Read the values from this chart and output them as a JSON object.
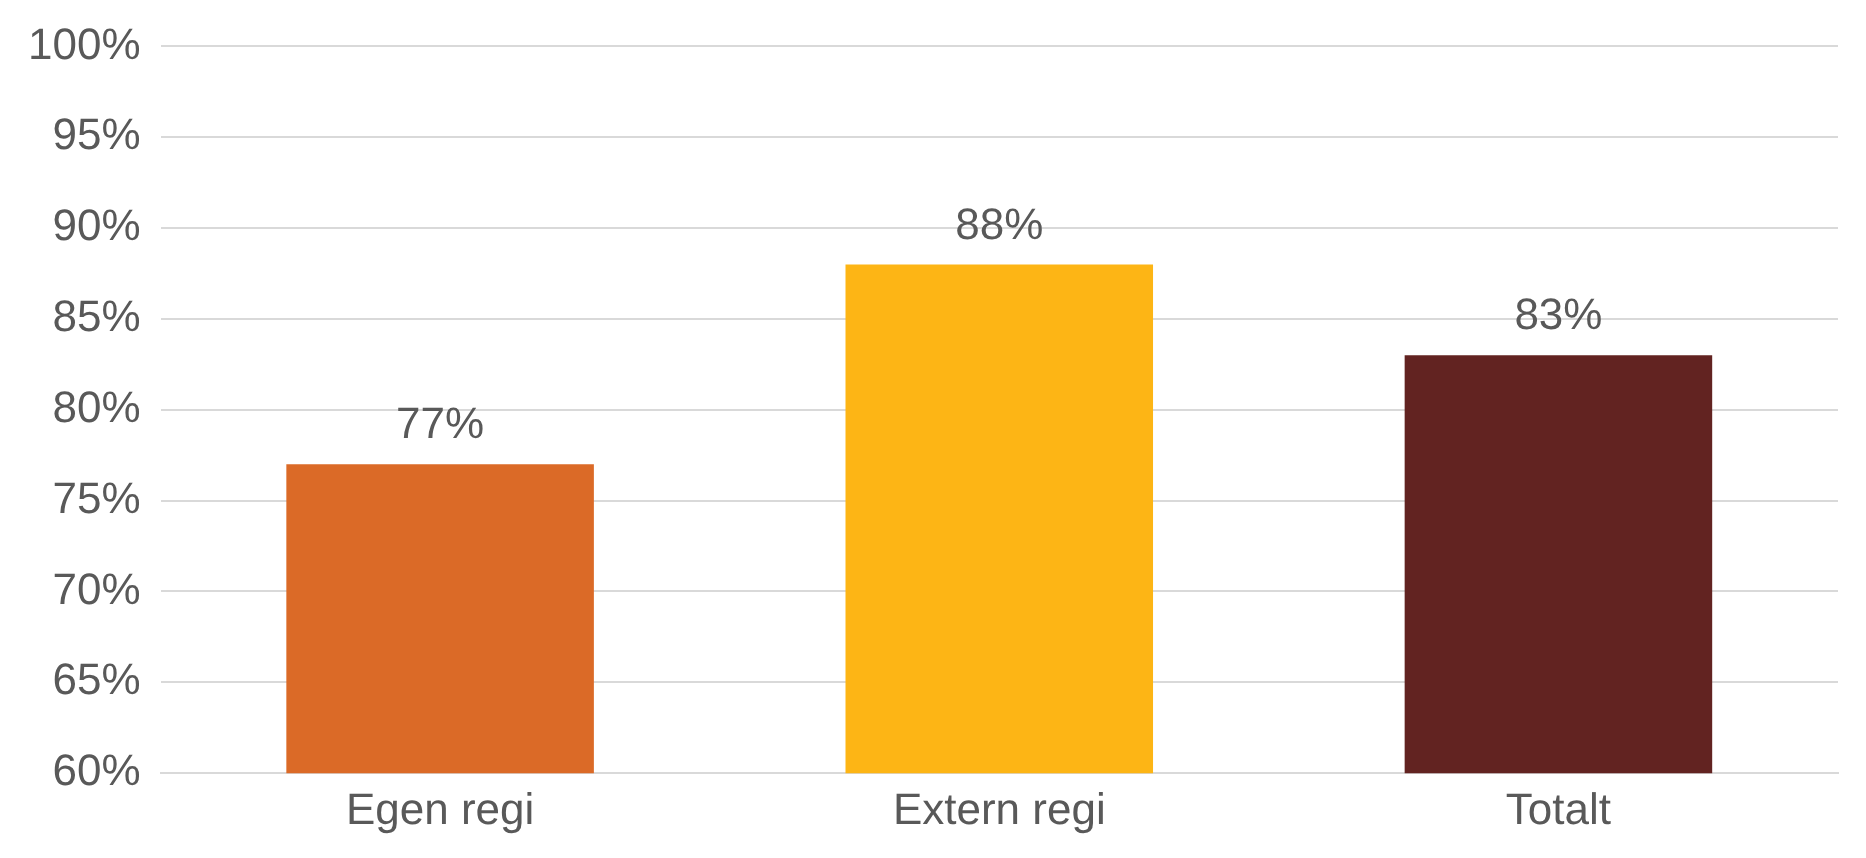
{
  "chart_data": {
    "type": "bar",
    "categories": [
      "Egen regi",
      "Extern regi",
      "Totalt"
    ],
    "values": [
      77,
      88,
      83
    ],
    "colors": [
      "#db6a27",
      "#fdb515",
      "#622321"
    ],
    "value_labels": [
      "77%",
      "88%",
      "83%"
    ],
    "ylim": [
      60,
      100
    ],
    "yticks": [
      {
        "value": 60,
        "label": "60%"
      },
      {
        "value": 65,
        "label": "65%"
      },
      {
        "value": 70,
        "label": "70%"
      },
      {
        "value": 75,
        "label": "75%"
      },
      {
        "value": 80,
        "label": "80%"
      },
      {
        "value": 85,
        "label": "85%"
      },
      {
        "value": 90,
        "label": "90%"
      },
      {
        "value": 95,
        "label": "95%"
      },
      {
        "value": 100,
        "label": "100%"
      }
    ],
    "grid": "y",
    "legend": false
  }
}
